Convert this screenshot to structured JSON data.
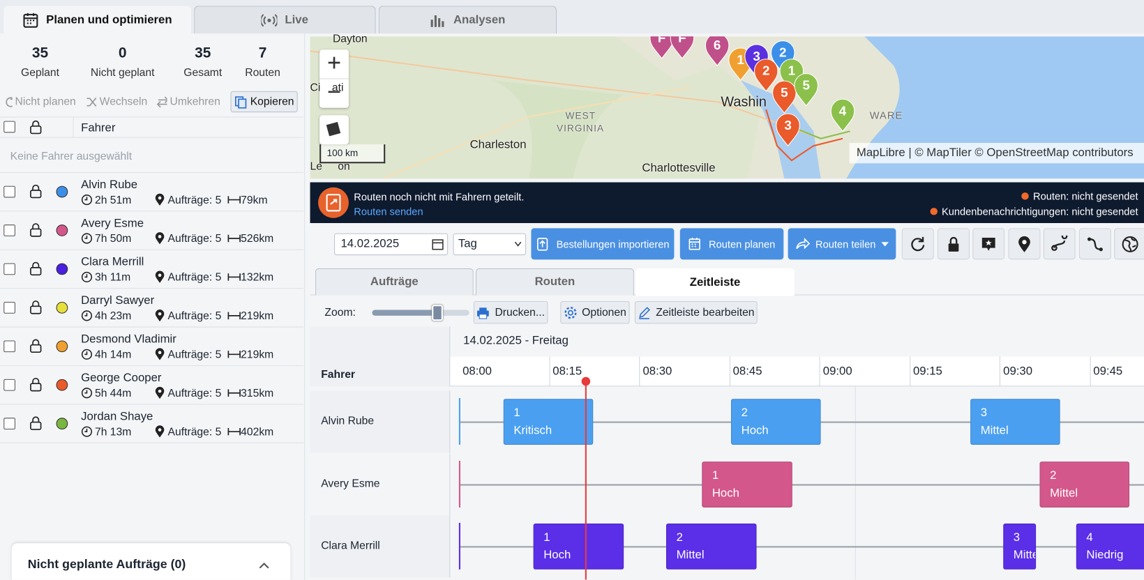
{
  "tabs": [
    "Planen und optimieren",
    "Live",
    "Analysen"
  ],
  "stats": [
    {
      "value": 35,
      "label": "Geplant"
    },
    {
      "value": 0,
      "label": "Nicht geplant"
    },
    {
      "value": 35,
      "label": "Gesamt"
    },
    {
      "value": 7,
      "label": "Routen"
    }
  ],
  "actions": [
    "Nicht planen",
    "Wechseln",
    "Umkehren",
    "Kopieren"
  ],
  "driver_header": "Fahrer",
  "no_selection": "Keine Fahrer ausgewählt",
  "drivers": [
    {
      "name": "Alvin Rube",
      "color": "#3b8fe8",
      "duration": "2h 51m",
      "orders": "Aufträge: 5",
      "distance": "79km"
    },
    {
      "name": "Avery Esme",
      "color": "#d3578a",
      "duration": "7h 50m",
      "orders": "Aufträge: 5",
      "distance": "526km"
    },
    {
      "name": "Clara Merrill",
      "color": "#4a1fe0",
      "duration": "3h 11m",
      "orders": "Aufträge: 5",
      "distance": "132km"
    },
    {
      "name": "Darryl Sawyer",
      "color": "#e8e03a",
      "duration": "4h 23m",
      "orders": "Aufträge: 5",
      "distance": "219km"
    },
    {
      "name": "Desmond Vladimir",
      "color": "#f0a030",
      "duration": "4h 14m",
      "orders": "Aufträge: 5",
      "distance": "219km"
    },
    {
      "name": "George Cooper",
      "color": "#ea5a2a",
      "duration": "5h 44m",
      "orders": "Aufträge: 5",
      "distance": "315km"
    },
    {
      "name": "Jordan Shaye",
      "color": "#7ab640",
      "duration": "7h 13m",
      "orders": "Aufträge: 5",
      "distance": "402km"
    }
  ],
  "unplanned": "Nicht geplante Aufträge (0)",
  "map": {
    "labels": [
      "Dayton",
      "ati",
      "Ci",
      "WEST",
      "VIRGINIA",
      "Charleston",
      "Washin",
      "WARE",
      "Charlottesville",
      "Le",
      "on"
    ],
    "scale": "100 km",
    "attribution": "MapLibre | © MapTiler © OpenStreetMap contributors",
    "markers": [
      {
        "label": "F",
        "color": "#c0508a"
      },
      {
        "label": "F",
        "color": "#c0508a"
      },
      {
        "label": "6",
        "color": "#c0508a"
      },
      {
        "label": "1",
        "color": "#f0a030"
      },
      {
        "label": "3",
        "color": "#5a30e0"
      },
      {
        "label": "2",
        "color": "#3b8fe8"
      },
      {
        "label": "2",
        "color": "#ea5a2a"
      },
      {
        "label": "1",
        "color": "#8bc04a"
      },
      {
        "label": "5",
        "color": "#ea5a2a"
      },
      {
        "label": "5",
        "color": "#8bc04a"
      },
      {
        "label": "3",
        "color": "#ea5a2a"
      },
      {
        "label": "4",
        "color": "#8bc04a"
      }
    ]
  },
  "banner": {
    "message": "Routen noch nicht mit Fahrern geteilt.",
    "link": "Routen senden",
    "status_routes": "Routen: nicht gesendet",
    "status_customers": "Kundenbenachrichtigungen: nicht gesendet"
  },
  "toolbar": {
    "date": "14.02.2025",
    "view": "Tag",
    "buttons": [
      "Bestellungen importieren",
      "Routen planen",
      "Routen teilen"
    ]
  },
  "subtabs": [
    "Aufträge",
    "Routen",
    "Zeitleiste"
  ],
  "timeline_toolbar": {
    "zoom": "Zoom:",
    "buttons": [
      "Drucken...",
      "Optionen",
      "Zeitleiste bearbeiten"
    ]
  },
  "timeline": {
    "date": "14.02.2025 - Freitag",
    "header": "Fahrer",
    "times": [
      "08:00",
      "08:15",
      "08:30",
      "08:45",
      "09:00",
      "09:15",
      "09:30",
      "09:45"
    ],
    "rows": [
      {
        "driver": "Alvin Rube",
        "color": "#4a9ff0",
        "stops": [
          {
            "number": "1",
            "priority": "Kritisch"
          },
          {
            "number": "2",
            "priority": "Hoch"
          },
          {
            "number": "3",
            "priority": "Mittel"
          }
        ]
      },
      {
        "driver": "Avery Esme",
        "color": "#d3578a",
        "stops": [
          {
            "number": "1",
            "priority": "Hoch"
          },
          {
            "number": "2",
            "priority": "Mittel"
          }
        ]
      },
      {
        "driver": "Clara Merrill",
        "color": "#5b2ee8",
        "stops": [
          {
            "number": "1",
            "priority": "Hoch"
          },
          {
            "number": "2",
            "priority": "Mittel"
          },
          {
            "number": "3",
            "priority": "Mittel"
          },
          {
            "number": "4",
            "priority": "Niedrig"
          }
        ]
      }
    ]
  }
}
